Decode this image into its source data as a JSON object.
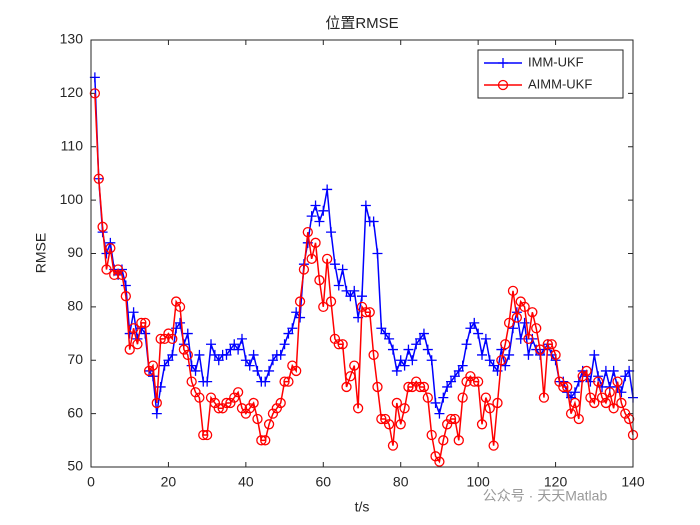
{
  "chart_data": {
    "type": "line",
    "title": "位置RMSE",
    "x_label": "t/s",
    "y_label": "RMSE",
    "x": [
      1,
      2,
      3,
      4,
      5,
      6,
      7,
      8,
      9,
      10,
      11,
      12,
      13,
      14,
      15,
      16,
      17,
      18,
      19,
      20,
      21,
      22,
      23,
      24,
      25,
      26,
      27,
      28,
      29,
      30,
      31,
      32,
      33,
      34,
      35,
      36,
      37,
      38,
      39,
      40,
      41,
      42,
      43,
      44,
      45,
      46,
      47,
      48,
      49,
      50,
      51,
      52,
      53,
      54,
      55,
      56,
      57,
      58,
      59,
      60,
      61,
      62,
      63,
      64,
      65,
      66,
      67,
      68,
      69,
      70,
      71,
      72,
      73,
      74,
      75,
      76,
      77,
      78,
      79,
      80,
      81,
      82,
      83,
      84,
      85,
      86,
      87,
      88,
      89,
      90,
      91,
      92,
      93,
      94,
      95,
      96,
      97,
      98,
      99,
      100,
      101,
      102,
      103,
      104,
      105,
      106,
      107,
      108,
      109,
      110,
      111,
      112,
      113,
      114,
      115,
      116,
      117,
      118,
      119,
      120,
      121,
      122,
      123,
      124,
      125,
      126,
      127,
      128,
      129,
      130,
      131,
      132,
      133,
      134,
      135,
      136,
      137,
      138,
      139,
      140
    ],
    "series": [
      {
        "name": "IMM-UKF",
        "color": "#0000ff",
        "marker": "plus",
        "values": [
          123,
          104,
          94,
          90,
          92,
          87,
          86,
          87,
          84,
          75,
          79,
          74,
          76,
          75,
          68,
          67,
          60,
          65,
          69,
          70,
          71,
          76,
          77,
          73,
          75,
          69,
          68,
          71,
          66,
          66,
          73,
          71,
          70,
          71,
          71,
          72,
          73,
          72,
          74,
          70,
          69,
          71,
          68,
          66,
          66,
          68,
          70,
          71,
          71,
          73,
          75,
          76,
          79,
          78,
          88,
          92,
          97,
          99,
          96,
          98,
          102,
          94,
          88,
          84,
          87,
          83,
          82,
          83,
          78,
          82,
          99,
          96,
          96,
          90,
          76,
          75,
          74,
          72,
          68,
          70,
          69,
          72,
          70,
          73,
          74,
          75,
          72,
          70,
          62,
          60,
          63,
          65,
          66,
          67,
          68,
          69,
          73,
          76,
          77,
          75,
          71,
          74,
          70,
          69,
          68,
          72,
          69,
          71,
          76,
          79,
          74,
          77,
          71,
          74,
          72,
          71,
          72,
          73,
          71,
          70,
          66,
          66,
          64,
          63,
          64,
          66,
          68,
          67,
          66,
          71,
          67,
          65,
          68,
          65,
          68,
          65,
          64,
          67,
          68,
          63
        ]
      },
      {
        "name": "AIMM-UKF",
        "color": "#ff0000",
        "marker": "circle",
        "values": [
          120,
          104,
          95,
          87,
          91,
          86,
          87,
          86,
          82,
          72,
          76,
          73,
          77,
          77,
          68,
          69,
          62,
          74,
          74,
          75,
          74,
          81,
          80,
          72,
          71,
          66,
          64,
          63,
          56,
          56,
          63,
          62,
          61,
          61,
          62,
          62,
          63,
          64,
          61,
          60,
          61,
          62,
          59,
          55,
          55,
          58,
          60,
          61,
          62,
          66,
          66,
          69,
          68,
          81,
          87,
          94,
          89,
          92,
          85,
          80,
          89,
          81,
          74,
          73,
          73,
          65,
          67,
          69,
          61,
          80,
          79,
          79,
          71,
          65,
          59,
          59,
          58,
          54,
          62,
          58,
          61,
          65,
          65,
          66,
          65,
          65,
          63,
          56,
          52,
          51,
          55,
          58,
          59,
          59,
          55,
          63,
          66,
          67,
          66,
          66,
          58,
          63,
          61,
          54,
          62,
          70,
          73,
          77,
          83,
          78,
          81,
          80,
          74,
          79,
          76,
          72,
          63,
          73,
          73,
          71,
          66,
          65,
          65,
          60,
          62,
          59,
          67,
          68,
          63,
          62,
          66,
          63,
          62,
          64,
          61,
          66,
          62,
          60,
          59,
          56
        ]
      }
    ],
    "xlim": [
      0,
      140
    ],
    "xticks": [
      0,
      20,
      40,
      60,
      80,
      100,
      120,
      140
    ],
    "ylim": [
      50,
      130
    ],
    "yticks": [
      50,
      60,
      70,
      80,
      90,
      100,
      110,
      120,
      130
    ],
    "legend": "upper right",
    "watermark": "公众号 · 天天Matlab"
  }
}
